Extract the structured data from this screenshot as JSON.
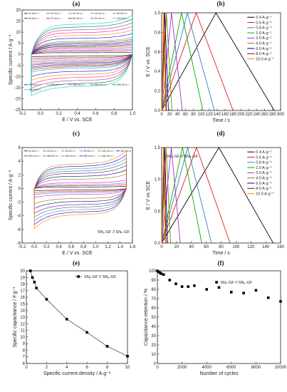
{
  "chart_data": [
    {
      "panel": "(a)",
      "type": "line",
      "xlabel": "E / V vs. SCE",
      "ylabel": "Specific current / A·g⁻¹",
      "xlim": [
        -0.2,
        1.0
      ],
      "ylim": [
        -25,
        20
      ],
      "xticks": [
        -0.2,
        0.0,
        0.2,
        0.4,
        0.6,
        0.8,
        1.0
      ],
      "yticks": [
        -25,
        -20,
        -15,
        -10,
        -5,
        0,
        5,
        10,
        15,
        20
      ],
      "legend_position": "top",
      "series": [
        {
          "name": "10 mV s⁻¹",
          "color": "#000000",
          "amplitude": 0.9
        },
        {
          "name": "20 mV s⁻¹",
          "color": "#e41a1c",
          "amplitude": 1.6
        },
        {
          "name": "30 mV s⁻¹",
          "color": "#377eb8",
          "amplitude": 2.2
        },
        {
          "name": "40 mV s⁻¹",
          "color": "#ff00ff",
          "amplitude": 2.9
        },
        {
          "name": "50 mV s⁻¹",
          "color": "#808000",
          "amplitude": 3.6
        },
        {
          "name": "60 mV s⁻¹",
          "color": "#000080",
          "amplitude": 4.2
        },
        {
          "name": "70 mV s⁻¹",
          "color": "#800080",
          "amplitude": 4.9
        },
        {
          "name": "80 mV s⁻¹",
          "color": "#800000",
          "amplitude": 5.5
        },
        {
          "name": "90 mV s⁻¹",
          "color": "#008080",
          "amplitude": 6.2
        },
        {
          "name": "100 mV s⁻¹",
          "color": "#808080",
          "amplitude": 6.9
        },
        {
          "name": "150 mV s⁻¹",
          "color": "#0000ff",
          "amplitude": 8.5
        },
        {
          "name": "200 mV s⁻¹",
          "color": "#ff7f00",
          "amplitude": 10.0
        },
        {
          "name": "250 mV s⁻¹",
          "color": "#ff1493",
          "amplitude": 11.5
        },
        {
          "name": "300 mV s⁻¹",
          "color": "#9932cc",
          "amplitude": 13.0
        },
        {
          "name": "350 mV s⁻¹",
          "color": "#008000",
          "amplitude": 14.5
        },
        {
          "name": "400 mV s⁻¹",
          "color": "#00ced1",
          "amplitude": 16.0
        }
      ]
    },
    {
      "panel": "(b)",
      "type": "line",
      "xlabel": "Time / s",
      "ylabel": "E / V vs. SCE",
      "xlim": [
        0,
        300
      ],
      "ylim": [
        0.0,
        1.0
      ],
      "xticks": [
        0,
        20,
        40,
        60,
        80,
        100,
        120,
        140,
        160,
        180,
        200,
        220,
        240,
        260,
        280,
        300
      ],
      "yticks": [
        0.0,
        0.2,
        0.4,
        0.6,
        0.8,
        1.0
      ],
      "legend_position": "top-right",
      "series": [
        {
          "name": "0.4 A·g⁻¹",
          "color": "#000000",
          "charge_end": 137,
          "discharge_end": 284
        },
        {
          "name": "0.6 A·g⁻¹",
          "color": "#e41a1c",
          "charge_end": 87,
          "discharge_end": 180
        },
        {
          "name": "0.8 A·g⁻¹",
          "color": "#377eb8",
          "charge_end": 65,
          "discharge_end": 133
        },
        {
          "name": "1.0 A·g⁻¹",
          "color": "#00aa00",
          "charge_end": 50,
          "discharge_end": 104
        },
        {
          "name": "2.0 A·g⁻¹",
          "color": "#9932cc",
          "charge_end": 25,
          "discharge_end": 52
        },
        {
          "name": "4.0 A·g⁻¹",
          "color": "#808000",
          "charge_end": 12,
          "discharge_end": 26
        },
        {
          "name": "6.0 A·g⁻¹",
          "color": "#000080",
          "charge_end": 8,
          "discharge_end": 17
        },
        {
          "name": "8.0 A·g⁻¹",
          "color": "#800000",
          "charge_end": 6,
          "discharge_end": 12
        },
        {
          "name": "10.0 A·g⁻¹",
          "color": "#ff7f00",
          "charge_end": 5,
          "discharge_end": 10
        }
      ]
    },
    {
      "panel": "(c)",
      "type": "line",
      "xlabel": "E / V vs. SCE",
      "ylabel": "Specific current / A·g⁻¹",
      "xlim": [
        -0.2,
        1.6
      ],
      "ylim": [
        -8,
        6
      ],
      "xticks": [
        -0.2,
        0.0,
        0.2,
        0.4,
        0.6,
        0.8,
        1.0,
        1.2,
        1.4,
        1.6
      ],
      "yticks": [
        -8,
        -6,
        -4,
        -2,
        0,
        2,
        4,
        6
      ],
      "legend_position": "top",
      "annotation": "SNₚ-GF // SNₚ-GF",
      "series": [
        {
          "name": "10 mV s⁻¹",
          "color": "#000000",
          "amplitude": 0.25
        },
        {
          "name": "20 mV s⁻¹",
          "color": "#e41a1c",
          "amplitude": 0.45
        },
        {
          "name": "30 mV s⁻¹",
          "color": "#377eb8",
          "amplitude": 0.65
        },
        {
          "name": "50 mV s⁻¹",
          "color": "#ff00ff",
          "amplitude": 0.95
        },
        {
          "name": "100 mV s⁻¹",
          "color": "#808000",
          "amplitude": 1.6
        },
        {
          "name": "150 mV s⁻¹",
          "color": "#000080",
          "amplitude": 2.1
        },
        {
          "name": "200 mV s⁻¹",
          "color": "#800080",
          "amplitude": 2.6
        },
        {
          "name": "250 mV s⁻¹",
          "color": "#008080",
          "amplitude": 3.0
        },
        {
          "name": "300 mV s⁻¹",
          "color": "#808080",
          "amplitude": 3.4
        },
        {
          "name": "350 mV s⁻¹",
          "color": "#0000ff",
          "amplitude": 3.8
        },
        {
          "name": "400 mV s⁻¹",
          "color": "#ff7f00",
          "amplitude": 4.2
        }
      ]
    },
    {
      "panel": "(d)",
      "type": "line",
      "xlabel": "Time / s",
      "ylabel": "E / V vs SCE",
      "xlim": [
        0,
        160
      ],
      "ylim": [
        0.0,
        1.5
      ],
      "xticks": [
        0,
        20,
        40,
        60,
        80,
        100,
        120,
        140,
        160
      ],
      "yticks": [
        0.0,
        0.5,
        1.0,
        1.5
      ],
      "legend_position": "top-right",
      "annotation": "SNₚ-GF // SNₚ-GF",
      "series": [
        {
          "name": "0.4 A·g⁻¹",
          "color": "#000000",
          "charge_end": 77,
          "discharge_end": 150
        },
        {
          "name": "0.6 A·g⁻¹",
          "color": "#e41a1c",
          "charge_end": 47,
          "discharge_end": 92
        },
        {
          "name": "0.8 A·g⁻¹",
          "color": "#377eb8",
          "charge_end": 35,
          "discharge_end": 67
        },
        {
          "name": "1.0 A·g⁻¹",
          "color": "#00aa00",
          "charge_end": 28,
          "discharge_end": 54
        },
        {
          "name": "2.0 A·g⁻¹",
          "color": "#9932cc",
          "charge_end": 13,
          "discharge_end": 25
        },
        {
          "name": "4.0 A·g⁻¹",
          "color": "#808000",
          "charge_end": 6,
          "discharge_end": 12
        },
        {
          "name": "6.0 A·g⁻¹",
          "color": "#000080",
          "charge_end": 4,
          "discharge_end": 8
        },
        {
          "name": "8.0 A·g⁻¹",
          "color": "#800000",
          "charge_end": 3,
          "discharge_end": 6
        },
        {
          "name": "10.0 A·g⁻¹",
          "color": "#ff7f00",
          "charge_end": 2.5,
          "discharge_end": 5
        }
      ]
    },
    {
      "panel": "(e)",
      "type": "line",
      "xlabel": "Specific current density / A.g⁻¹",
      "ylabel": "Specific capacitance / F.g⁻¹",
      "xlim": [
        0,
        10
      ],
      "ylim": [
        6,
        20
      ],
      "xticks": [
        0,
        2,
        4,
        6,
        8,
        10
      ],
      "yticks": [
        6,
        7,
        8,
        9,
        10,
        11,
        12,
        13,
        14,
        15,
        16,
        17,
        18,
        19,
        20
      ],
      "legend_position": "top-right",
      "series": [
        {
          "name": "SNₚ-GF // SNₚ-GF",
          "color": "#000000",
          "x": [
            0.4,
            0.6,
            0.8,
            1.0,
            2.0,
            4.0,
            6.0,
            8.0,
            10.0
          ],
          "y": [
            20.0,
            19.0,
            18.3,
            17.4,
            15.7,
            12.7,
            10.7,
            8.6,
            7.1
          ]
        }
      ]
    },
    {
      "panel": "(f)",
      "type": "scatter",
      "xlabel": "Number of cycles",
      "ylabel": "Capacitance retention / %",
      "xlim": [
        0,
        10000
      ],
      "ylim": [
        0,
        100
      ],
      "xticks": [
        0,
        2000,
        4000,
        6000,
        8000,
        10000
      ],
      "yticks": [
        0,
        10,
        20,
        30,
        40,
        50,
        60,
        70,
        80,
        90,
        100
      ],
      "legend_position": "top-right",
      "series": [
        {
          "name": "SNₚ-GF // SNₚ-GF",
          "color": "#000000",
          "x": [
            0,
            100,
            200,
            300,
            500,
            1000,
            1500,
            2000,
            2500,
            3000,
            4000,
            5000,
            6000,
            7000,
            8000,
            9000,
            10000
          ],
          "y": [
            100,
            99,
            98,
            97,
            96,
            90,
            86,
            83,
            83,
            84,
            80,
            82,
            77,
            76,
            79,
            71,
            67
          ]
        }
      ]
    }
  ]
}
